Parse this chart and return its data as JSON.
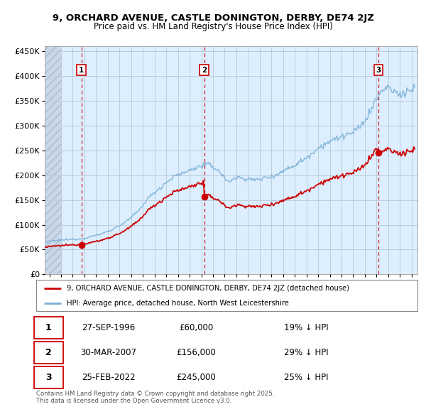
{
  "title": "9, ORCHARD AVENUE, CASTLE DONINGTON, DERBY, DE74 2JZ",
  "subtitle": "Price paid vs. HM Land Registry's House Price Index (HPI)",
  "ylabel_ticks": [
    "£0",
    "£50K",
    "£100K",
    "£150K",
    "£200K",
    "£250K",
    "£300K",
    "£350K",
    "£400K",
    "£450K"
  ],
  "ytick_values": [
    0,
    50000,
    100000,
    150000,
    200000,
    250000,
    300000,
    350000,
    400000,
    450000
  ],
  "ylim": [
    0,
    460000
  ],
  "xlim_start": 1993.6,
  "xlim_end": 2025.5,
  "hatch_end": 1995.0,
  "legend_line1": "9, ORCHARD AVENUE, CASTLE DONINGTON, DERBY, DE74 2JZ (detached house)",
  "legend_line2": "HPI: Average price, detached house, North West Leicestershire",
  "transactions": [
    {
      "num": 1,
      "date": "27-SEP-1996",
      "price": 60000,
      "hpi_note": "19% ↓ HPI",
      "year": 1996.74
    },
    {
      "num": 2,
      "date": "30-MAR-2007",
      "price": 156000,
      "hpi_note": "29% ↓ HPI",
      "year": 2007.25
    },
    {
      "num": 3,
      "date": "25-FEB-2022",
      "price": 245000,
      "hpi_note": "25% ↓ HPI",
      "year": 2022.15
    }
  ],
  "footnote": "Contains HM Land Registry data © Crown copyright and database right 2025.\nThis data is licensed under the Open Government Licence v3.0.",
  "red_color": "#cc0000",
  "blue_color": "#7ab0d4",
  "chart_bg": "#ddeeff",
  "background_color": "#ffffff",
  "grid_color": "#bbccdd",
  "hatch_color": "#c8d8e8"
}
